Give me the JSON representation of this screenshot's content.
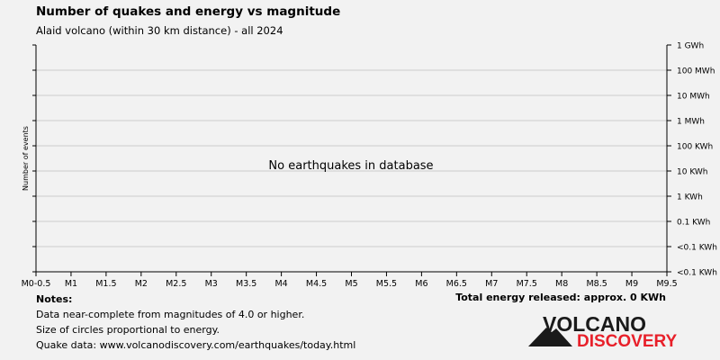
{
  "title": "Number of quakes and energy vs magnitude",
  "subtitle": "Alaid volcano (within 30 km distance) - all 2024",
  "chart_data": {
    "type": "scatter",
    "ylabel": "Number of events",
    "x_tick_labels": [
      "M0-0.5",
      "M1",
      "M1.5",
      "M2",
      "M2.5",
      "M3",
      "M3.5",
      "M4",
      "M4.5",
      "M5",
      "M5.5",
      "M6",
      "M6.5",
      "M7",
      "M7.5",
      "M8",
      "M8.5",
      "M9",
      "M9.5"
    ],
    "right_axis_labels": [
      "1 GWh",
      "100 MWh",
      "10 MWh",
      "1 MWh",
      "100 KWh",
      "10 KWh",
      "1 KWh",
      "0.1 KWh",
      "<0.1 KWh",
      "<0.1 KWh"
    ],
    "series": [],
    "annotation": "No earthquakes in database",
    "grid": true
  },
  "total_energy": "Total energy released: approx. 0 KWh",
  "notes": {
    "heading": "Notes:",
    "lines": [
      "Data near-complete from magnitudes of 4.0 or higher.",
      "Size of circles proportional to energy.",
      "Quake data: www.volcanodiscovery.com/earthquakes/today.html"
    ]
  },
  "logo": {
    "line1": "VOLCANO",
    "line2": "DISCOVERY"
  },
  "colors": {
    "background": "#f2f2f2",
    "grid": "#cccccc",
    "logo_red": "#e8202a",
    "logo_dark": "#1a1a1a"
  }
}
